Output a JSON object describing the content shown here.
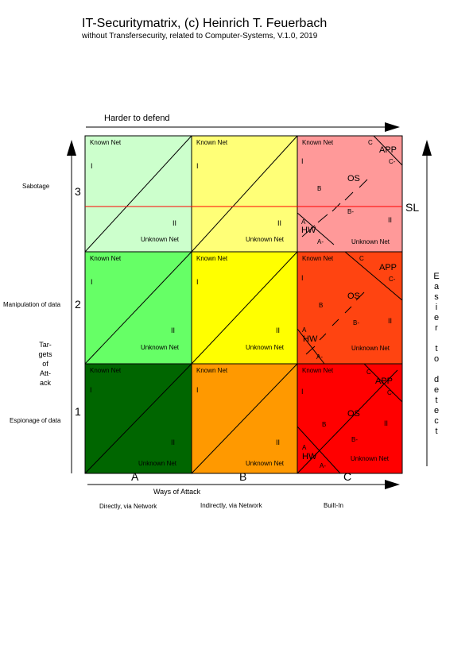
{
  "header": {
    "title": "IT-Securitymatrix, (c) Heinrich T. Feuerbach",
    "subtitle": "without Transfersecurity, related to Computer-Systems, V.1.0, 2019"
  },
  "axes": {
    "top_arrow_label": "Harder to defend",
    "bottom_arrow_label": "Ways of Attack",
    "left_axis_label_lines": [
      "Tar-",
      "gets",
      "of",
      "Att-",
      "ack"
    ],
    "right_axis_label_lines": [
      "E",
      "a",
      "s",
      "i",
      "e",
      "r",
      "",
      "t",
      "o",
      "",
      "d",
      "e",
      "t",
      "e",
      "c",
      "t"
    ]
  },
  "rows": [
    {
      "level": "3",
      "label": "Sabotage"
    },
    {
      "level": "2",
      "label": "Manipulation of data"
    },
    {
      "level": "1",
      "label": "Espionage of data"
    }
  ],
  "columns": [
    {
      "letter": "A",
      "label": "Directly, via Network"
    },
    {
      "letter": "B",
      "label": "Indirectly, via Network"
    },
    {
      "letter": "C",
      "label": "Built-In"
    }
  ],
  "cell_text": {
    "known": "Known Net",
    "unknown": "Unknown Net",
    "zone_i": "I",
    "zone_ii": "II"
  },
  "c_column": {
    "os": "OS",
    "app": "APP",
    "hw": "HW",
    "b": "B",
    "b_minus": "B-",
    "c": "C",
    "c_minus": "C-",
    "a": "A",
    "a_minus": "A-"
  },
  "sl_label": "SL",
  "colors": {
    "r3": [
      "#ccffcc",
      "#ffff77",
      "#ff9999"
    ],
    "r2": [
      "#66ff66",
      "#ffff00",
      "#ff4411"
    ],
    "r1": [
      "#006600",
      "#ff9900",
      "#ff0000"
    ],
    "sl_line": "#ff0000"
  }
}
